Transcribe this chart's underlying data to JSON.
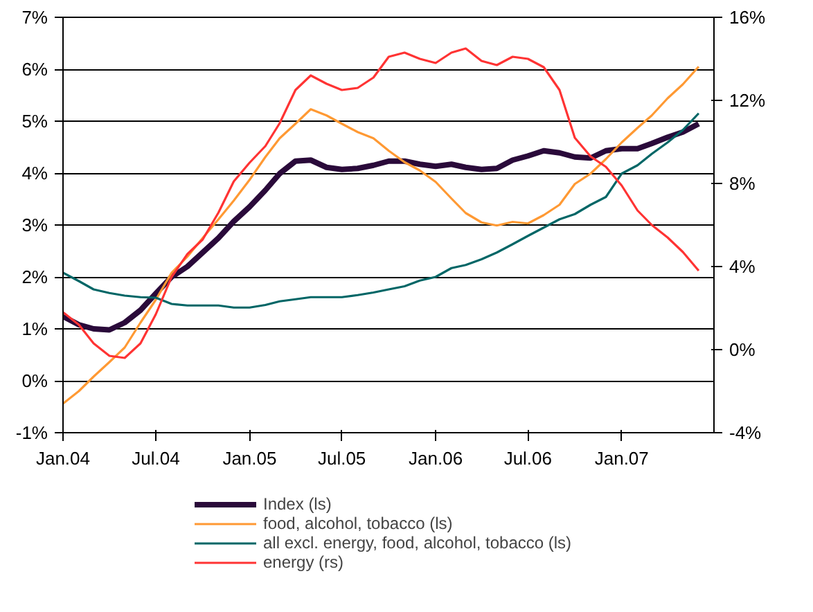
{
  "chart_data": {
    "type": "line",
    "x": [
      "2004-01",
      "2004-02",
      "2004-03",
      "2004-04",
      "2004-05",
      "2004-06",
      "2004-07",
      "2004-08",
      "2004-09",
      "2004-10",
      "2004-11",
      "2004-12",
      "2005-01",
      "2005-02",
      "2005-03",
      "2005-04",
      "2005-05",
      "2005-06",
      "2005-07",
      "2005-08",
      "2005-09",
      "2005-10",
      "2005-11",
      "2005-12",
      "2006-01",
      "2006-02",
      "2006-03",
      "2006-04",
      "2006-05",
      "2006-06",
      "2006-07",
      "2006-08",
      "2006-09",
      "2006-10",
      "2006-11",
      "2006-12",
      "2007-01",
      "2007-02",
      "2007-03",
      "2007-04",
      "2007-05",
      "2007-06"
    ],
    "series": [
      {
        "name": "Index (ls)",
        "color": "#2a0a3a",
        "values": [
          1.24,
          1.08,
          1.0,
          0.98,
          1.12,
          1.36,
          1.68,
          2.0,
          2.2,
          2.47,
          2.75,
          3.07,
          3.35,
          3.67,
          3.99,
          4.23,
          4.25,
          4.11,
          4.07,
          4.09,
          4.15,
          4.23,
          4.23,
          4.17,
          4.13,
          4.17,
          4.11,
          4.07,
          4.09,
          4.25,
          4.33,
          4.43,
          4.39,
          4.31,
          4.29,
          4.43,
          4.47,
          4.47,
          4.57,
          4.69,
          4.79,
          4.95
        ]
      },
      {
        "name": "food, alcohol, tobacco (ls)",
        "color": "#ff9933",
        "values": [
          -0.44,
          -0.2,
          0.08,
          0.36,
          0.64,
          1.12,
          1.56,
          2.08,
          2.39,
          2.75,
          3.11,
          3.47,
          3.87,
          4.31,
          4.67,
          4.95,
          5.23,
          5.11,
          4.95,
          4.79,
          4.67,
          4.43,
          4.21,
          4.05,
          3.83,
          3.51,
          3.23,
          3.05,
          2.99,
          3.06,
          3.03,
          3.19,
          3.39,
          3.79,
          3.99,
          4.27,
          4.59,
          4.87,
          5.11,
          5.44,
          5.71,
          6.05
        ]
      },
      {
        "name": "all excl. energy, food, alcohol, tobacco (ls)",
        "color": "#006666",
        "values": [
          2.08,
          1.92,
          1.76,
          1.69,
          1.64,
          1.61,
          1.6,
          1.48,
          1.45,
          1.45,
          1.45,
          1.41,
          1.41,
          1.46,
          1.53,
          1.57,
          1.61,
          1.61,
          1.61,
          1.65,
          1.7,
          1.76,
          1.82,
          1.93,
          2.0,
          2.17,
          2.23,
          2.34,
          2.47,
          2.63,
          2.79,
          2.95,
          3.11,
          3.21,
          3.39,
          3.54,
          3.99,
          4.15,
          4.37,
          4.59,
          4.83,
          5.15
        ]
      },
      {
        "name": "energy (rs)",
        "color": "#ff3333",
        "axis": "y2",
        "values": [
          1.8,
          1.2,
          0.3,
          -0.3,
          -0.4,
          0.3,
          1.7,
          3.5,
          4.6,
          5.3,
          6.6,
          8.1,
          9.0,
          9.8,
          10.9,
          12.5,
          13.2,
          12.8,
          12.5,
          12.6,
          13.1,
          14.1,
          14.3,
          14.0,
          13.8,
          14.3,
          14.5,
          13.9,
          13.7,
          14.1,
          14.0,
          13.6,
          12.5,
          10.2,
          9.3,
          8.8,
          7.9,
          6.7,
          6.0,
          5.4,
          4.7,
          3.8
        ]
      }
    ],
    "ylim": [
      -1,
      7
    ],
    "yticks": [
      {
        "value": -1,
        "label": "-1%"
      },
      {
        "value": 0,
        "label": "0%"
      },
      {
        "value": 1,
        "label": "1%"
      },
      {
        "value": 2,
        "label": "2%"
      },
      {
        "value": 3,
        "label": "3%"
      },
      {
        "value": 4,
        "label": "4%"
      },
      {
        "value": 5,
        "label": "5%"
      },
      {
        "value": 6,
        "label": "6%"
      },
      {
        "value": 7,
        "label": "7%"
      }
    ],
    "y2lim": [
      -4,
      16
    ],
    "y2ticks": [
      {
        "value": -4,
        "label": "-4%"
      },
      {
        "value": 0,
        "label": "0%"
      },
      {
        "value": 4,
        "label": "4%"
      },
      {
        "value": 8,
        "label": "8%"
      },
      {
        "value": 12,
        "label": "12%"
      },
      {
        "value": 16,
        "label": "16%"
      }
    ],
    "xlim": [
      "2004-01",
      "2007-07"
    ],
    "xticks": [
      {
        "value": "2004-01",
        "label": "Jan.04"
      },
      {
        "value": "2004-07",
        "label": "Jul.04"
      },
      {
        "value": "2005-01",
        "label": "Jan.05"
      },
      {
        "value": "2005-07",
        "label": "Jul.05"
      },
      {
        "value": "2006-01",
        "label": "Jan.06"
      },
      {
        "value": "2006-07",
        "label": "Jul.06"
      },
      {
        "value": "2007-01",
        "label": "Jan.07"
      }
    ],
    "grid": "y",
    "legend": "bottom",
    "marker": "none",
    "line_style": "solid"
  }
}
